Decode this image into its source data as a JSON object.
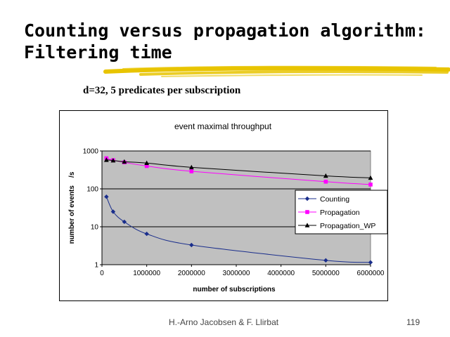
{
  "slide": {
    "title_line1": "Counting versus propagation algorithm:",
    "title_line2": "Filtering time",
    "subtitle": "d=32, 5 predicates per subscription",
    "footer_author": "H.-Arno Jacobsen & F. Llirbat",
    "page_number": "119"
  },
  "colors": {
    "plot_background": "#c0c0c0",
    "brush_stroke": "#e8c400",
    "counting": "#1a2e8c",
    "propagation": "#ff00ff",
    "propagation_wp": "#000000"
  },
  "chart_data": {
    "type": "line",
    "title": "event maximal throughput",
    "xlabel": "number of subscriptions",
    "ylabel": "number of events    /s",
    "yscale": "log",
    "xlim": [
      0,
      6000000
    ],
    "ylim": [
      1,
      1000
    ],
    "grid": true,
    "legend_position": "right",
    "x_ticks": [
      "0",
      "1000000",
      "2000000",
      "3000000",
      "4000000",
      "5000000",
      "6000000"
    ],
    "y_ticks": [
      "1",
      "10",
      "100",
      "1000"
    ],
    "series": [
      {
        "name": "Counting",
        "marker": "diamond",
        "color": "#1a2e8c",
        "x": [
          100000,
          250000,
          500000,
          1000000,
          2000000,
          5000000,
          6000000
        ],
        "y": [
          62,
          25,
          13.5,
          6.5,
          3.3,
          1.3,
          1.15
        ]
      },
      {
        "name": "Propagation",
        "marker": "square",
        "color": "#ff00ff",
        "x": [
          100000,
          250000,
          500000,
          1000000,
          2000000,
          5000000,
          6000000
        ],
        "y": [
          640,
          570,
          500,
          400,
          290,
          155,
          130
        ]
      },
      {
        "name": "Propagation_WP",
        "marker": "triangle",
        "color": "#000000",
        "x": [
          100000,
          250000,
          500000,
          1000000,
          2000000,
          5000000,
          6000000
        ],
        "y": [
          580,
          560,
          520,
          480,
          370,
          220,
          195
        ]
      }
    ]
  }
}
